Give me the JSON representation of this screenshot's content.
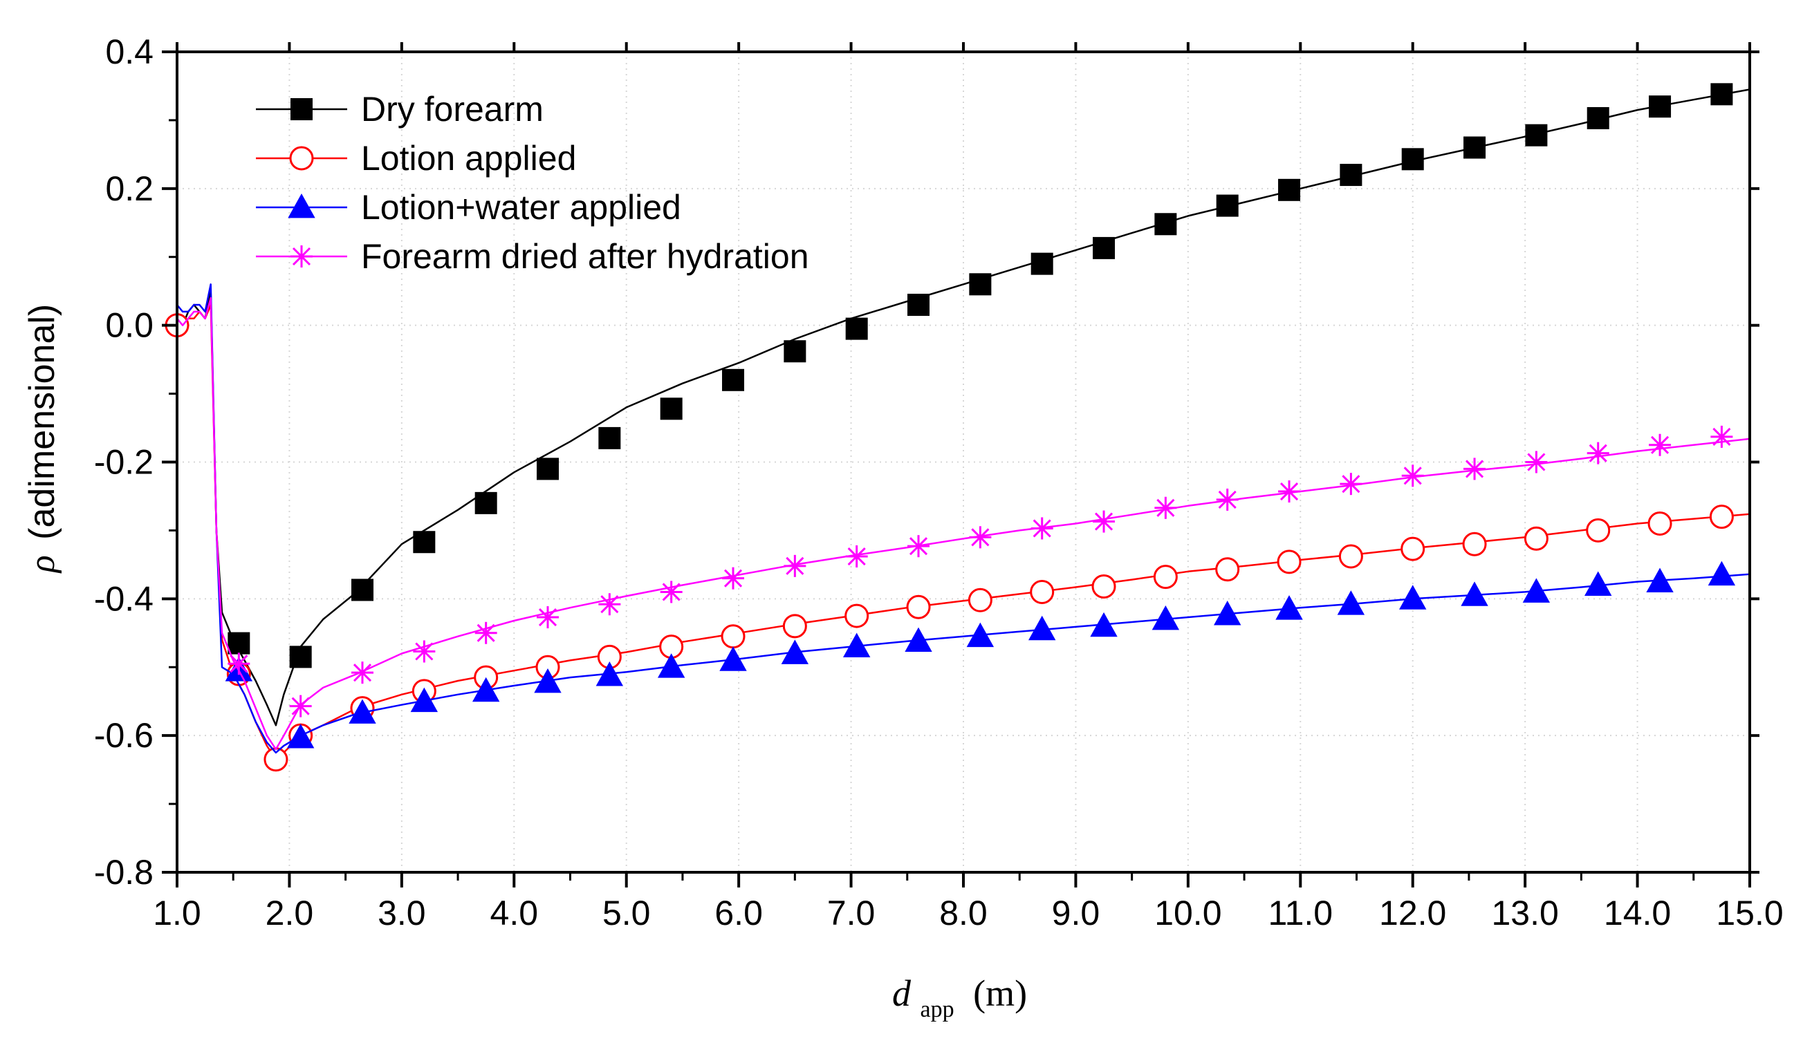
{
  "chart_data": {
    "type": "line",
    "title": "",
    "xlabel": {
      "symbol": "d",
      "subscript": "app",
      "unit": "(m)"
    },
    "ylabel": {
      "symbol": "ρ",
      "text": "(adimensional)"
    },
    "xlim": [
      1.0,
      15.0
    ],
    "ylim": [
      -0.8,
      0.4
    ],
    "x_ticks": [
      1.0,
      2.0,
      3.0,
      4.0,
      5.0,
      6.0,
      7.0,
      8.0,
      9.0,
      10.0,
      11.0,
      12.0,
      13.0,
      14.0,
      15.0
    ],
    "x_tick_labels": [
      "1.0",
      "2.0",
      "3.0",
      "4.0",
      "5.0",
      "6.0",
      "7.0",
      "8.0",
      "9.0",
      "10.0",
      "11.0",
      "12.0",
      "13.0",
      "14.0",
      "15.0"
    ],
    "y_ticks": [
      0.4,
      0.2,
      0.0,
      -0.2,
      -0.4,
      -0.6,
      -0.8
    ],
    "y_tick_labels": [
      "0.4",
      "0.2",
      "0.0",
      "-0.2",
      "-0.4",
      "-0.6",
      "-0.8"
    ],
    "grid": true,
    "legend_position": "top-left",
    "series": [
      {
        "name": "Dry forearm",
        "color": "#000000",
        "marker": "square",
        "line_points": {
          "x": [
            1.0,
            1.05,
            1.1,
            1.15,
            1.2,
            1.25,
            1.3,
            1.35,
            1.4,
            1.5,
            1.6,
            1.7,
            1.8,
            1.88,
            1.95,
            2.1,
            2.3,
            2.6,
            3.0,
            3.5,
            4.0,
            4.5,
            5.0,
            5.5,
            6.0,
            6.5,
            7.0,
            7.5,
            8.0,
            8.5,
            9.0,
            9.5,
            10.0,
            10.5,
            11.0,
            11.5,
            12.0,
            12.5,
            13.0,
            13.5,
            14.0,
            14.5,
            15.0
          ],
          "y": [
            0.02,
            0.0,
            0.02,
            0.03,
            0.02,
            0.01,
            0.05,
            -0.3,
            -0.42,
            -0.46,
            -0.49,
            -0.52,
            -0.555,
            -0.585,
            -0.54,
            -0.47,
            -0.43,
            -0.39,
            -0.32,
            -0.27,
            -0.215,
            -0.17,
            -0.12,
            -0.085,
            -0.055,
            -0.02,
            0.01,
            0.035,
            0.06,
            0.085,
            0.11,
            0.135,
            0.16,
            0.18,
            0.2,
            0.22,
            0.24,
            0.258,
            0.276,
            0.295,
            0.315,
            0.33,
            0.345
          ]
        },
        "markers": {
          "x": [
            1.55,
            2.1,
            2.65,
            3.2,
            3.75,
            4.3,
            4.85,
            5.4,
            5.95,
            6.5,
            7.05,
            7.6,
            8.15,
            8.7,
            9.25,
            9.8,
            10.35,
            10.9,
            11.45,
            12.0,
            12.55,
            13.1,
            13.65,
            14.2,
            14.75
          ],
          "y": [
            -0.465,
            -0.485,
            -0.387,
            -0.317,
            -0.26,
            -0.21,
            -0.165,
            -0.122,
            -0.08,
            -0.038,
            -0.005,
            0.03,
            0.06,
            0.09,
            0.113,
            0.148,
            0.175,
            0.198,
            0.22,
            0.243,
            0.26,
            0.278,
            0.303,
            0.32,
            0.338
          ]
        }
      },
      {
        "name": "Lotion applied",
        "color": "#ff0000",
        "marker": "open-circle",
        "line_points": {
          "x": [
            1.0,
            1.05,
            1.1,
            1.15,
            1.2,
            1.25,
            1.3,
            1.35,
            1.4,
            1.5,
            1.6,
            1.7,
            1.8,
            1.88,
            1.95,
            2.1,
            2.3,
            2.6,
            3.0,
            3.5,
            4.0,
            4.5,
            5.0,
            5.5,
            6.0,
            6.5,
            7.0,
            7.5,
            8.0,
            8.5,
            9.0,
            9.5,
            10.0,
            10.5,
            11.0,
            11.5,
            12.0,
            12.5,
            13.0,
            13.5,
            14.0,
            14.5,
            15.0
          ],
          "y": [
            0.0,
            0.0,
            0.01,
            0.01,
            0.02,
            0.01,
            0.03,
            -0.3,
            -0.46,
            -0.51,
            -0.54,
            -0.58,
            -0.615,
            -0.635,
            -0.625,
            -0.6,
            -0.585,
            -0.56,
            -0.54,
            -0.52,
            -0.505,
            -0.49,
            -0.478,
            -0.463,
            -0.45,
            -0.437,
            -0.425,
            -0.413,
            -0.403,
            -0.393,
            -0.383,
            -0.372,
            -0.36,
            -0.352,
            -0.343,
            -0.335,
            -0.326,
            -0.318,
            -0.31,
            -0.3,
            -0.29,
            -0.283,
            -0.276
          ]
        },
        "markers": {
          "x": [
            1.0,
            1.55,
            1.88,
            2.1,
            2.65,
            3.2,
            3.75,
            4.3,
            4.85,
            5.4,
            5.95,
            6.5,
            7.05,
            7.6,
            8.15,
            8.7,
            9.25,
            9.8,
            10.35,
            10.9,
            11.45,
            12.0,
            12.55,
            13.1,
            13.65,
            14.2,
            14.75
          ],
          "y": [
            0.0,
            -0.51,
            -0.635,
            -0.6,
            -0.56,
            -0.535,
            -0.515,
            -0.5,
            -0.485,
            -0.47,
            -0.455,
            -0.44,
            -0.425,
            -0.412,
            -0.402,
            -0.39,
            -0.382,
            -0.368,
            -0.357,
            -0.346,
            -0.338,
            -0.327,
            -0.32,
            -0.312,
            -0.3,
            -0.29,
            -0.28
          ]
        }
      },
      {
        "name": "Lotion+water applied",
        "color": "#0000ff",
        "marker": "filled-triangle",
        "line_points": {
          "x": [
            1.0,
            1.05,
            1.1,
            1.15,
            1.2,
            1.25,
            1.3,
            1.35,
            1.4,
            1.5,
            1.6,
            1.7,
            1.8,
            1.88,
            1.95,
            2.1,
            2.3,
            2.6,
            3.0,
            3.5,
            4.0,
            4.5,
            5.0,
            5.5,
            6.0,
            6.5,
            7.0,
            7.5,
            8.0,
            8.5,
            9.0,
            9.5,
            10.0,
            10.5,
            11.0,
            11.5,
            12.0,
            12.5,
            13.0,
            13.5,
            14.0,
            14.5,
            15.0
          ],
          "y": [
            0.03,
            0.02,
            0.02,
            0.03,
            0.03,
            0.02,
            0.06,
            -0.3,
            -0.5,
            -0.51,
            -0.54,
            -0.58,
            -0.61,
            -0.625,
            -0.615,
            -0.6,
            -0.585,
            -0.568,
            -0.555,
            -0.54,
            -0.527,
            -0.515,
            -0.507,
            -0.497,
            -0.488,
            -0.478,
            -0.47,
            -0.462,
            -0.455,
            -0.448,
            -0.441,
            -0.434,
            -0.427,
            -0.42,
            -0.413,
            -0.407,
            -0.4,
            -0.395,
            -0.39,
            -0.383,
            -0.375,
            -0.37,
            -0.364
          ]
        },
        "markers": {
          "x": [
            1.55,
            2.1,
            2.65,
            3.2,
            3.75,
            4.3,
            4.85,
            5.4,
            5.95,
            6.5,
            7.05,
            7.6,
            8.15,
            8.7,
            9.25,
            9.8,
            10.35,
            10.9,
            11.45,
            12.0,
            12.55,
            13.1,
            13.65,
            14.2,
            14.75
          ],
          "y": [
            -0.505,
            -0.603,
            -0.567,
            -0.55,
            -0.535,
            -0.522,
            -0.512,
            -0.5,
            -0.49,
            -0.48,
            -0.47,
            -0.462,
            -0.455,
            -0.445,
            -0.44,
            -0.43,
            -0.423,
            -0.415,
            -0.408,
            -0.4,
            -0.395,
            -0.39,
            -0.38,
            -0.375,
            -0.365
          ]
        }
      },
      {
        "name": "Forearm dried after hydration",
        "color": "#ff00ff",
        "marker": "asterisk",
        "line_points": {
          "x": [
            1.0,
            1.05,
            1.1,
            1.15,
            1.2,
            1.25,
            1.3,
            1.35,
            1.4,
            1.5,
            1.6,
            1.7,
            1.8,
            1.88,
            1.95,
            2.1,
            2.3,
            2.6,
            3.0,
            3.5,
            4.0,
            4.5,
            5.0,
            5.5,
            6.0,
            6.5,
            7.0,
            7.5,
            8.0,
            8.5,
            9.0,
            9.5,
            10.0,
            10.5,
            11.0,
            11.5,
            12.0,
            12.5,
            13.0,
            13.5,
            14.0,
            14.5,
            15.0
          ],
          "y": [
            0.01,
            0.0,
            0.01,
            0.02,
            0.02,
            0.01,
            0.04,
            -0.3,
            -0.45,
            -0.49,
            -0.52,
            -0.56,
            -0.6,
            -0.62,
            -0.6,
            -0.555,
            -0.53,
            -0.51,
            -0.48,
            -0.455,
            -0.432,
            -0.413,
            -0.396,
            -0.38,
            -0.365,
            -0.35,
            -0.337,
            -0.325,
            -0.312,
            -0.3,
            -0.29,
            -0.277,
            -0.264,
            -0.253,
            -0.243,
            -0.233,
            -0.222,
            -0.213,
            -0.205,
            -0.195,
            -0.184,
            -0.175,
            -0.166
          ]
        },
        "markers": {
          "x": [
            1.55,
            2.1,
            2.65,
            3.2,
            3.75,
            4.3,
            4.85,
            5.4,
            5.95,
            6.5,
            7.05,
            7.6,
            8.15,
            8.7,
            9.25,
            9.8,
            10.35,
            10.9,
            11.45,
            12.0,
            12.55,
            13.1,
            13.65,
            14.2,
            14.75
          ],
          "y": [
            -0.495,
            -0.557,
            -0.508,
            -0.477,
            -0.45,
            -0.427,
            -0.408,
            -0.39,
            -0.37,
            -0.352,
            -0.338,
            -0.323,
            -0.31,
            -0.297,
            -0.287,
            -0.267,
            -0.255,
            -0.243,
            -0.232,
            -0.22,
            -0.21,
            -0.2,
            -0.187,
            -0.175,
            -0.163
          ]
        }
      }
    ]
  }
}
